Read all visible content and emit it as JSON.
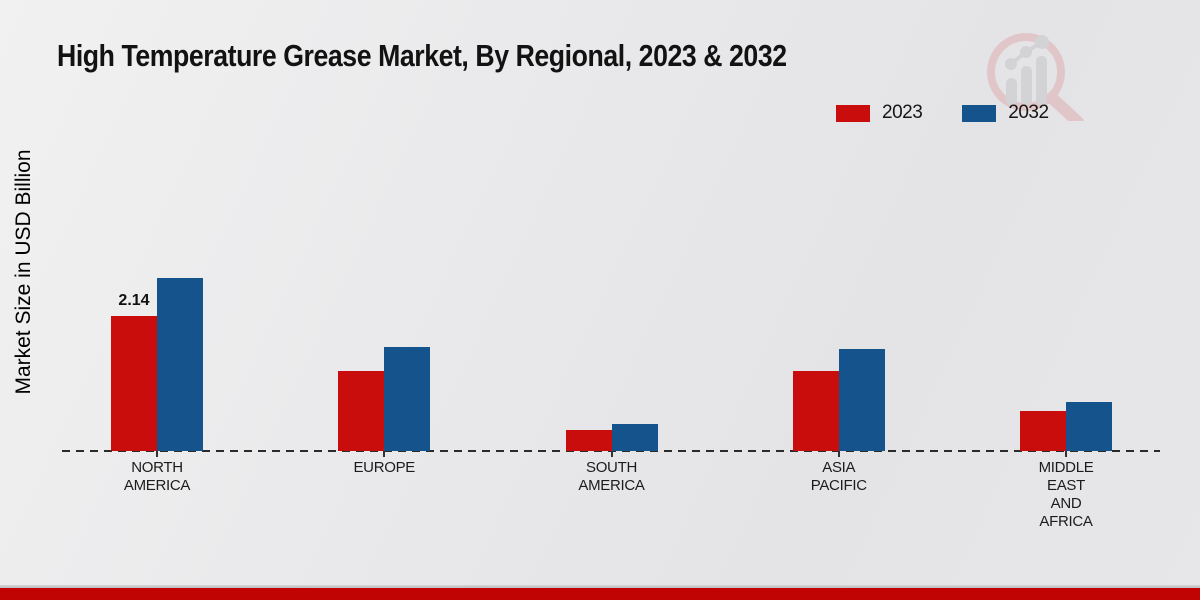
{
  "title": "High Temperature Grease Market, By Regional, 2023 & 2032",
  "y_axis_label": "Market Size in USD Billion",
  "watermark_icon": "magnifier-bar-chart-icon",
  "colors": {
    "series_2023": "#c90d0d",
    "series_2032": "#15538d",
    "bottom_strip": "#c00404",
    "background": "#e8e8ea",
    "axis": "#2b2b2b"
  },
  "legend": [
    {
      "label": "2023",
      "color": "#c90d0d"
    },
    {
      "label": "2032",
      "color": "#15538d"
    }
  ],
  "chart_data": {
    "type": "bar",
    "title": "High Temperature Grease Market, By Regional, 2023 & 2032",
    "xlabel": "",
    "ylabel": "Market Size in USD Billion",
    "ylim": [
      0,
      3
    ],
    "grid": false,
    "legend_position": "top-right",
    "baseline_style": "dashed",
    "categories": [
      "NORTH AMERICA",
      "EUROPE",
      "SOUTH AMERICA",
      "ASIA PACIFIC",
      "MIDDLE EAST AND AFRICA"
    ],
    "category_label_lines": [
      [
        "NORTH",
        "AMERICA"
      ],
      [
        "EUROPE"
      ],
      [
        "SOUTH",
        "AMERICA"
      ],
      [
        "ASIA",
        "PACIFIC"
      ],
      [
        "MIDDLE",
        "EAST",
        "AND",
        "AFRICA"
      ]
    ],
    "series": [
      {
        "name": "2023",
        "color": "#c90d0d",
        "values": [
          2.14,
          1.27,
          0.33,
          1.27,
          0.63
        ]
      },
      {
        "name": "2032",
        "color": "#15538d",
        "values": [
          2.74,
          1.65,
          0.43,
          1.61,
          0.78
        ]
      }
    ],
    "annotations": [
      {
        "category_index": 0,
        "series": "2023",
        "text": "2.14"
      }
    ]
  }
}
